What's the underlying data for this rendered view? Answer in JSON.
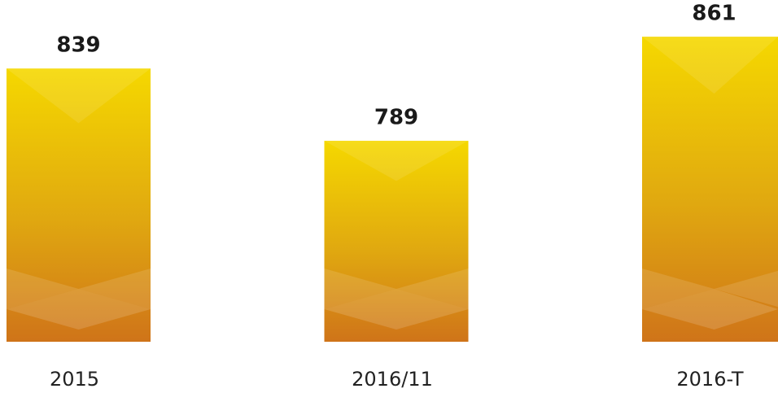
{
  "chart_data": {
    "type": "bar",
    "categories": [
      "2015",
      "2016/11",
      "2016-T"
    ],
    "values": [
      839,
      789,
      861
    ],
    "color": "#f5d800",
    "ylim": [
      650,
      865
    ]
  }
}
